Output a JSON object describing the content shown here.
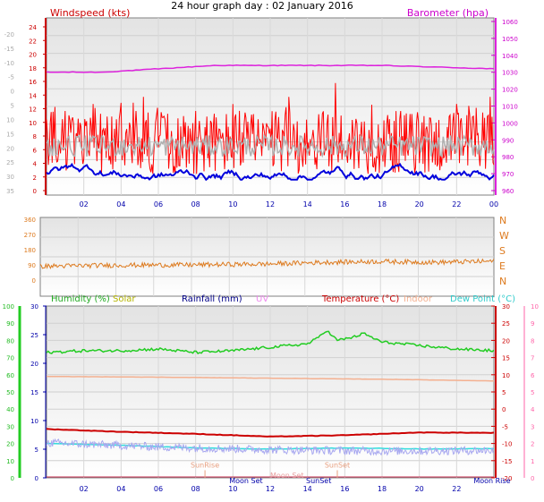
{
  "title": "24 hour graph day : 02 January 2016",
  "colors": {
    "wind_avg": "#0000dd",
    "wind_gust": "#ff0000",
    "wind_gray": "#b0b0b0",
    "barometer": "#dd22dd",
    "direction": "#dd7a1e",
    "humidity": "#22cc22",
    "solar": "#b5b500",
    "rainfall": "#000088",
    "uv": "#ee88ee",
    "temperature": "#cc0000",
    "indoor": "#f4b090",
    "dew_point": "#33dddd",
    "temp_light": "#a8a8f0",
    "axis_blue": "#0000aa",
    "axis_green": "#22bb22",
    "axis_red": "#cc0000",
    "axis_pink": "#ff66aa",
    "axis_orange": "#dd7a1e",
    "axis_magenta": "#cc00cc",
    "sun_label": "#e8a080",
    "moon_label": "#e8a0a0"
  },
  "chart_data": [
    {
      "type": "line",
      "labels": {
        "left": "Windspeed (kts)",
        "right": "Barometer (hpa)"
      },
      "y_outer_ticks": [
        "-20",
        "-15",
        "-10",
        "-5",
        "0",
        "5",
        "10",
        "15",
        "20",
        "25",
        "30",
        "35"
      ],
      "y_left_ticks": [
        "0",
        "2",
        "4",
        "6",
        "8",
        "10",
        "12",
        "14",
        "16",
        "18",
        "20",
        "22",
        "24"
      ],
      "y_right_ticks": [
        "960",
        "970",
        "980",
        "990",
        "1000",
        "1010",
        "1020",
        "1030",
        "1040",
        "1050",
        "1060"
      ],
      "ylim_left": [
        0,
        25
      ],
      "ylim_right": [
        955,
        1062
      ],
      "x_ticks": [
        "02",
        "04",
        "06",
        "08",
        "10",
        "12",
        "14",
        "16",
        "18",
        "20",
        "22",
        "00"
      ],
      "xlim": [
        0,
        24
      ],
      "series": [
        {
          "key": "barometer",
          "points": [
            [
              0,
              1030
            ],
            [
              3,
              1030
            ],
            [
              6,
              1032
            ],
            [
              9,
              1034
            ],
            [
              12,
              1034
            ],
            [
              15,
              1034
            ],
            [
              18,
              1034
            ],
            [
              21,
              1033
            ],
            [
              24,
              1032
            ]
          ]
        },
        {
          "key": "wind_gust",
          "base": 7.5,
          "spread": 4.5,
          "spikes": [
            [
              1.0,
              12
            ],
            [
              2.5,
              13
            ],
            [
              4.8,
              12
            ],
            [
              5.2,
              14
            ],
            [
              8.0,
              12
            ],
            [
              10.0,
              13
            ],
            [
              13.0,
              14
            ],
            [
              15.5,
              16
            ],
            [
              19.0,
              12
            ],
            [
              22.0,
              13
            ],
            [
              23.8,
              14
            ]
          ]
        },
        {
          "key": "wind_gray",
          "base": 7.0,
          "spread": 1.5
        },
        {
          "key": "wind_avg",
          "base": 3.3,
          "spread": 1.1
        }
      ]
    },
    {
      "type": "line",
      "y_left_ticks": [
        "0",
        "90",
        "180",
        "270",
        "360"
      ],
      "y_right_ticks": [
        "N",
        "E",
        "S",
        "W",
        "N"
      ],
      "ylim": [
        0,
        360
      ],
      "series": [
        {
          "key": "direction",
          "points": [
            [
              0,
              82
            ],
            [
              4,
              88
            ],
            [
              8,
              90
            ],
            [
              12,
              95
            ],
            [
              15,
              105
            ],
            [
              18,
              110
            ],
            [
              21,
              105
            ],
            [
              24,
              112
            ]
          ]
        }
      ]
    },
    {
      "type": "line",
      "labels": {
        "humidity": "Humidity (%)",
        "solar": "Solar",
        "rainfall": "Rainfall (mm)",
        "uv": "UV",
        "temperature": "Temperature (°C)",
        "indoor": "Indoor",
        "dew_point": "Dew Point (°C)"
      },
      "y_outer_ticks": [
        "0",
        "10",
        "20",
        "30",
        "40",
        "50",
        "60",
        "70",
        "80",
        "90",
        "100"
      ],
      "y_left_ticks": [
        "0",
        "5",
        "10",
        "15",
        "20",
        "25",
        "30"
      ],
      "y_right_ticks": [
        "-20",
        "-15",
        "-10",
        "-5",
        "0",
        "5",
        "10",
        "15",
        "20",
        "25",
        "30"
      ],
      "y_outer_right_ticks": [
        "0",
        "1",
        "2",
        "3",
        "4",
        "5",
        "6",
        "7",
        "8",
        "9",
        "10"
      ],
      "ylim_humidity": [
        0,
        100
      ],
      "ylim_temp": [
        -20,
        30
      ],
      "x_ticks": [
        "02",
        "04",
        "06",
        "08",
        "10",
        "12",
        "14",
        "16",
        "18",
        "20",
        "22"
      ],
      "xlim": [
        0,
        24
      ],
      "annotations": [
        {
          "text": "SunRise",
          "x": 8.5,
          "y": -17
        },
        {
          "text": "SunSet",
          "x": 15.6,
          "y": -17
        },
        {
          "text": "Moon Set",
          "x": 12.9,
          "y": -20
        },
        {
          "text": "Moon Set",
          "x": 10.7,
          "y": -21.5
        },
        {
          "text": "SunSet",
          "x": 14.6,
          "y": -21.5
        },
        {
          "text": "Moon Rise",
          "x": 23.9,
          "y": -21.5
        }
      ],
      "series": [
        {
          "key": "humidity",
          "points": [
            [
              0,
              73
            ],
            [
              2,
              74
            ],
            [
              4,
              74
            ],
            [
              6,
              75
            ],
            [
              8,
              73
            ],
            [
              10,
              74
            ],
            [
              12,
              76
            ],
            [
              14,
              78
            ],
            [
              14.5,
              81
            ],
            [
              15.0,
              86
            ],
            [
              15.6,
              80
            ],
            [
              16.5,
              82
            ],
            [
              17,
              84
            ],
            [
              18,
              79
            ],
            [
              20,
              77
            ],
            [
              22,
              75
            ],
            [
              24,
              74
            ]
          ]
        },
        {
          "key": "indoor",
          "points": [
            [
              0,
              9.5
            ],
            [
              6,
              9.3
            ],
            [
              12,
              9.0
            ],
            [
              18,
              8.7
            ],
            [
              24,
              8.2
            ]
          ]
        },
        {
          "key": "temperature",
          "points": [
            [
              0,
              -5.8
            ],
            [
              4,
              -6.6
            ],
            [
              8,
              -7.2
            ],
            [
              12,
              -8.0
            ],
            [
              16,
              -7.6
            ],
            [
              20,
              -6.8
            ],
            [
              24,
              -6.9
            ]
          ]
        },
        {
          "key": "dew_point",
          "points": [
            [
              0,
              -10.0
            ],
            [
              4,
              -10.5
            ],
            [
              8,
              -11.3
            ],
            [
              12,
              -11.6
            ],
            [
              16,
              -11.3
            ],
            [
              20,
              -11.6
            ],
            [
              24,
              -11.5
            ]
          ]
        },
        {
          "key": "temp_light",
          "base_points": [
            [
              0,
              -9.8
            ],
            [
              6,
              -11.0
            ],
            [
              12,
              -11.8
            ],
            [
              18,
              -12.2
            ],
            [
              24,
              -12.0
            ]
          ],
          "spread": 1.2
        }
      ]
    }
  ]
}
